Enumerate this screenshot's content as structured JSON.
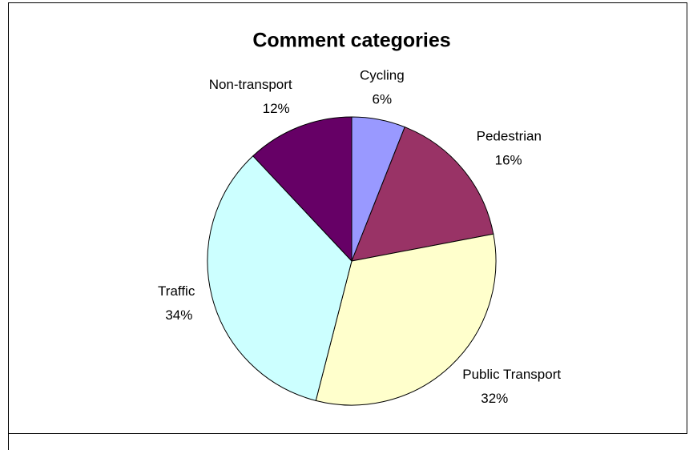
{
  "chart_data": {
    "type": "pie",
    "title": "Comment categories",
    "categories": [
      "Cycling",
      "Pedestrian",
      "Public Transport",
      "Traffic",
      "Non-transport"
    ],
    "values": [
      6,
      16,
      32,
      34,
      12
    ],
    "value_labels": [
      "6%",
      "16%",
      "32%",
      "34%",
      "12%"
    ],
    "colors": [
      "#9999ff",
      "#993366",
      "#ffffcc",
      "#ccffff",
      "#660066"
    ]
  }
}
